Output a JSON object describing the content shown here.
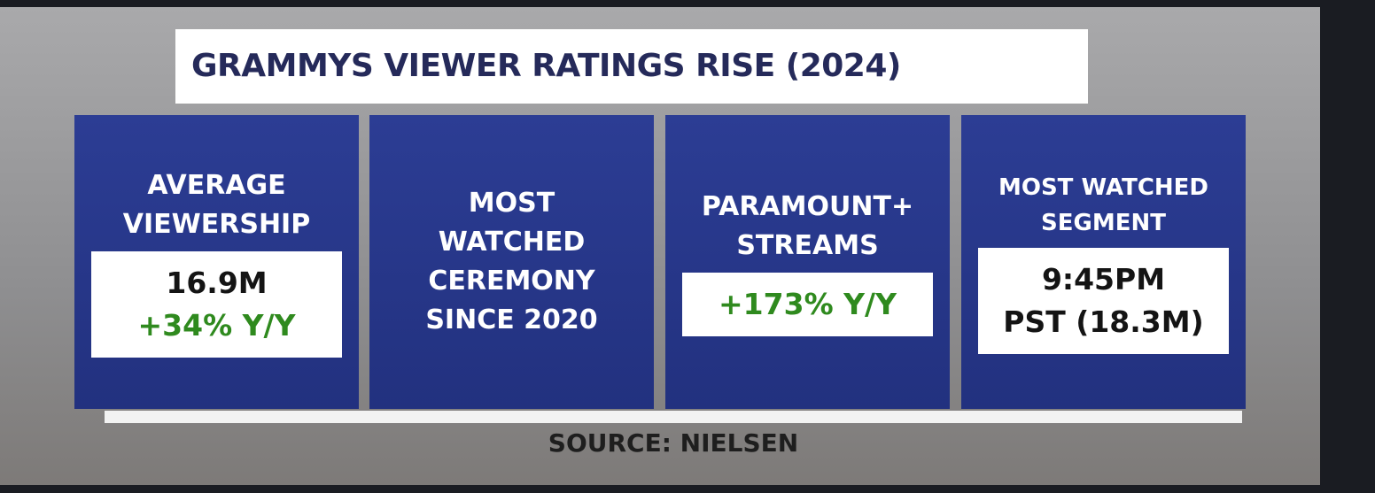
{
  "title": "GRAMMYS VIEWER RATINGS RISE (2024)",
  "cards": [
    {
      "heading": [
        "AVERAGE",
        "VIEWERSHIP"
      ],
      "box": [
        {
          "text": "16.9M",
          "color": "#141414"
        },
        {
          "text": "+34% Y/Y",
          "color": "#2f8a1e"
        }
      ]
    },
    {
      "heading": [
        "MOST",
        "WATCHED",
        "CEREMONY",
        "SINCE 2020"
      ],
      "box": []
    },
    {
      "heading": [
        "PARAMOUNT+",
        "STREAMS"
      ],
      "box": [
        {
          "text": "+173% Y/Y",
          "color": "#2f8a1e"
        }
      ]
    },
    {
      "heading": [
        "MOST WATCHED",
        "SEGMENT"
      ],
      "box": [
        {
          "text": "9:45PM",
          "color": "#141414"
        },
        {
          "text": "PST (18.3M)",
          "color": "#141414"
        }
      ]
    }
  ],
  "source": "SOURCE: NIELSEN"
}
